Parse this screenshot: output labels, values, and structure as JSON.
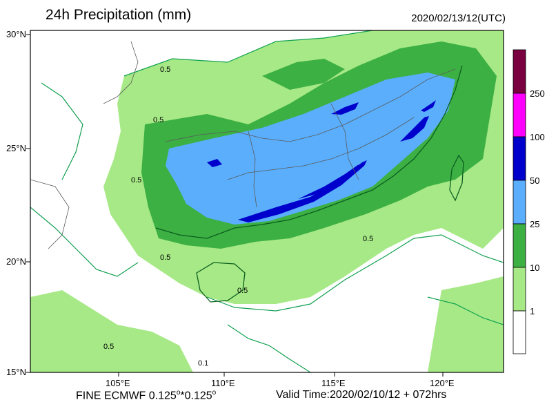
{
  "header": {
    "title": "24h Precipitation (mm)",
    "datetime": "2020/02/13/12(UTC)"
  },
  "axes": {
    "lat_labels": [
      "30°N",
      "25°N",
      "20°N",
      "15°N"
    ],
    "lon_labels": [
      "105°E",
      "110°E",
      "115°E",
      "120°E"
    ]
  },
  "contour_labels": [
    "0.5",
    "0.5",
    "0.5",
    "0.5",
    "0.5",
    "0.1",
    "0.5",
    "0.5"
  ],
  "colorbar": {
    "colors": [
      "#7a0040",
      "#ff00ff",
      "#0000cc",
      "#5aaefc",
      "#3cb043",
      "#a6e986",
      "#ffffff"
    ],
    "labels": [
      "250",
      "100",
      "50",
      "25",
      "10",
      "1"
    ]
  },
  "legend_colors": {
    "light_green": "#a6e986",
    "green": "#3cb043",
    "light_blue": "#5aaefc",
    "blue": "#0000cc",
    "contour": "#10a050",
    "coast": "#0b5d1e",
    "border": "#5a5a5a"
  },
  "footer": {
    "model_prefix": "FINE ECMWF 0.125",
    "degree_mark": "o",
    "model_sep": "*0.125",
    "model_degree_mark": "o",
    "valid_time": "Valid Time:2020/02/10/12 + 072hrs"
  }
}
